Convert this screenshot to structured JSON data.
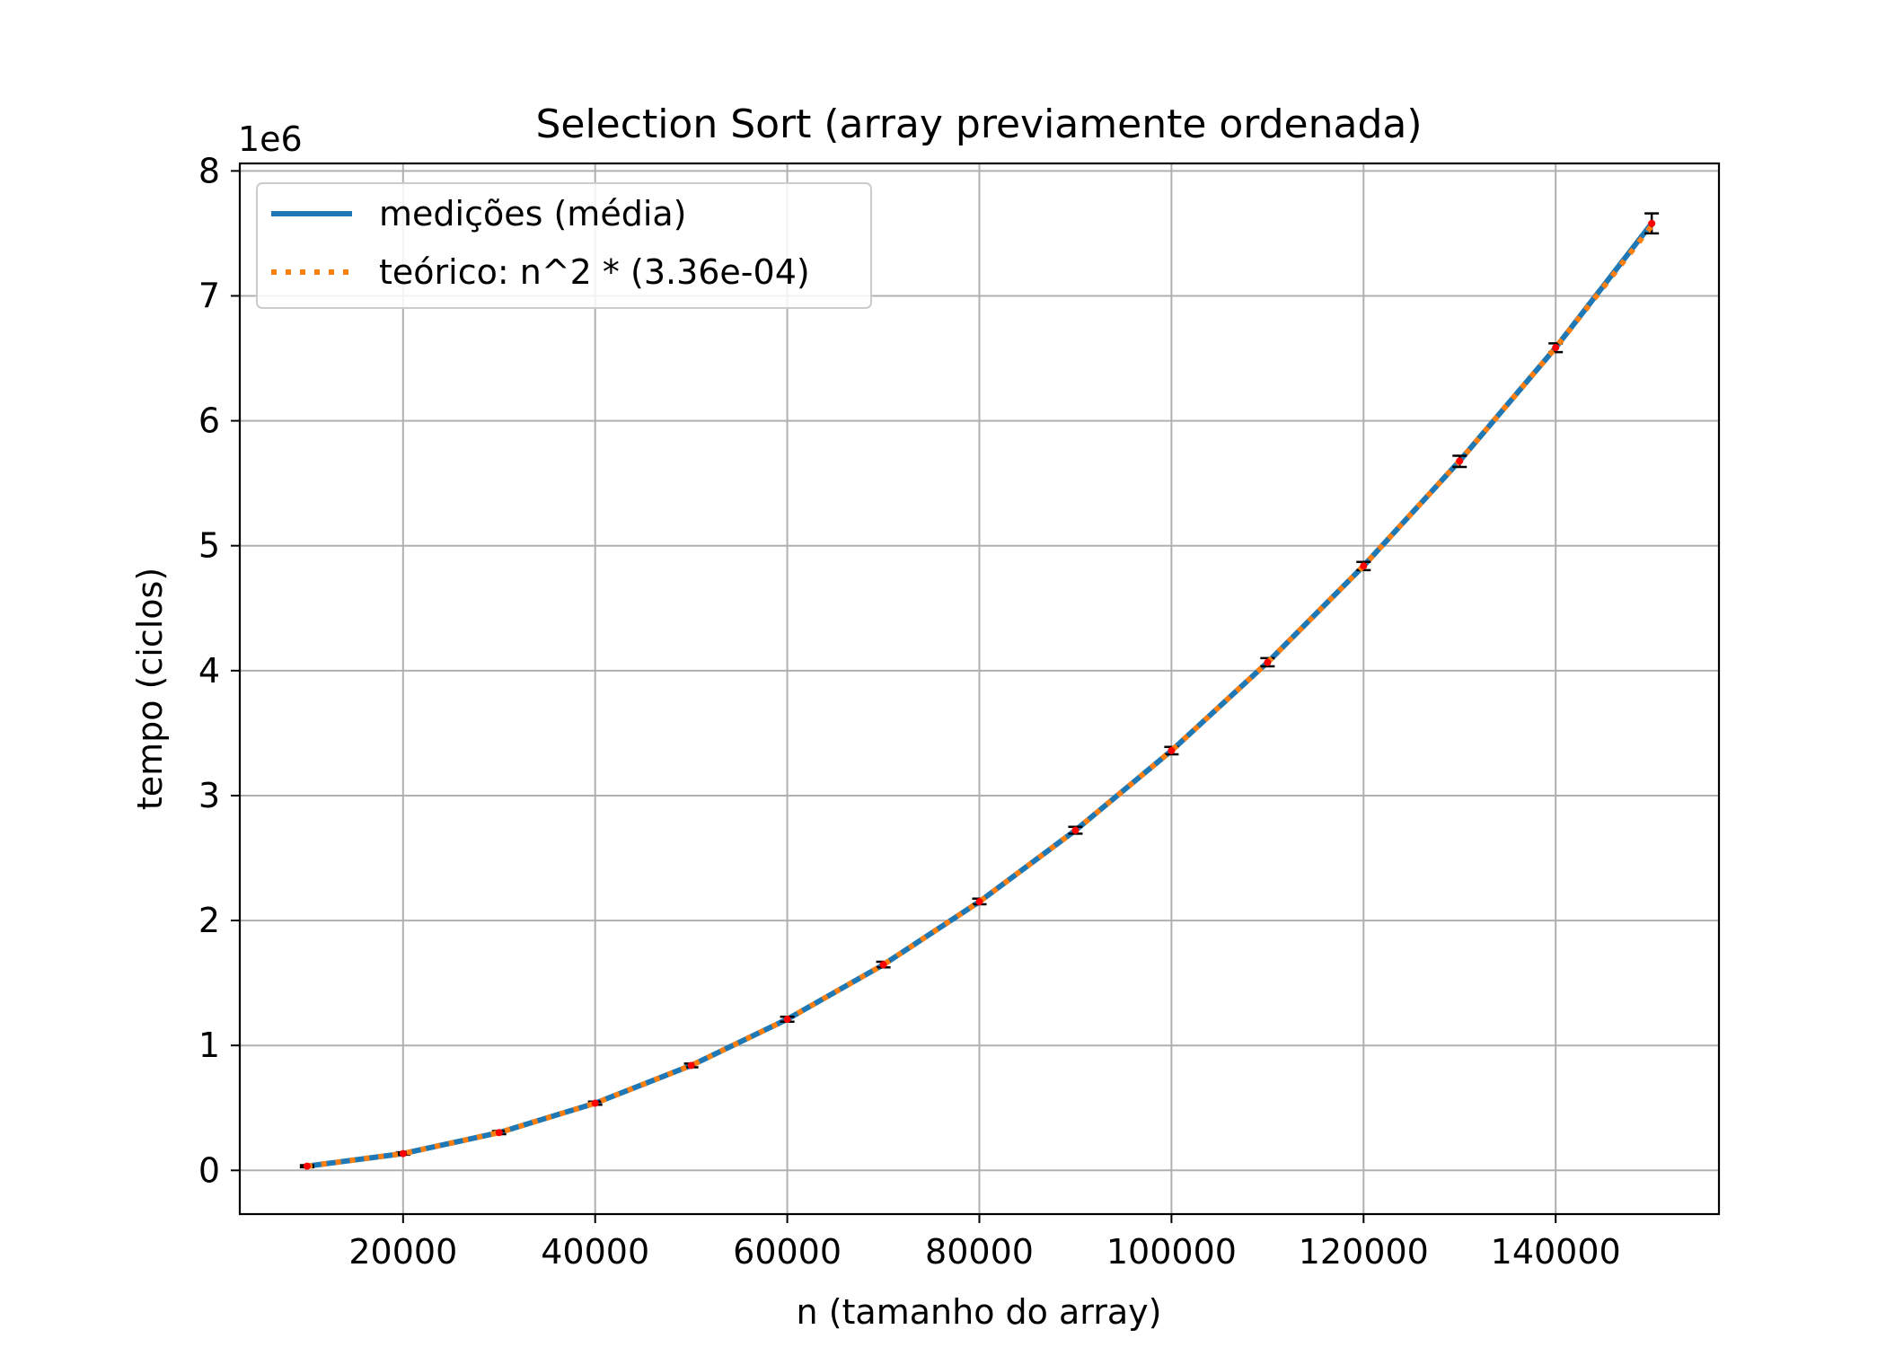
{
  "chart_data": {
    "type": "line",
    "title": "Selection Sort (array previamente ordenada)",
    "xlabel": "n (tamanho do array)",
    "ylabel": "tempo (ciclos)",
    "y_offset_text": "1e6",
    "y_scale": 1000000,
    "xlim": [
      3000,
      157000
    ],
    "ylim": [
      -350000,
      8060000
    ],
    "x_ticks": [
      20000,
      40000,
      60000,
      80000,
      100000,
      120000,
      140000
    ],
    "x_tick_labels": [
      "20000",
      "40000",
      "60000",
      "80000",
      "100000",
      "120000",
      "140000"
    ],
    "y_ticks": [
      0,
      1000000,
      2000000,
      3000000,
      4000000,
      5000000,
      6000000,
      7000000,
      8000000
    ],
    "y_tick_labels": [
      "0",
      "1",
      "2",
      "3",
      "4",
      "5",
      "6",
      "7",
      "8"
    ],
    "grid": true,
    "legend_position": "upper-left",
    "x": [
      10000,
      20000,
      30000,
      40000,
      50000,
      60000,
      70000,
      80000,
      90000,
      100000,
      110000,
      120000,
      130000,
      140000,
      150000
    ],
    "series": [
      {
        "name": "medições (média)",
        "style": "solid",
        "color": "#1f77b4",
        "values": [
          33600,
          134400,
          302400,
          537600,
          840000,
          1209600,
          1646400,
          2150400,
          2721600,
          3360000,
          4065600,
          4838400,
          5678400,
          6585600,
          7580000
        ],
        "error_low": [
          25000,
          125000,
          290000,
          525000,
          825000,
          1190000,
          1625000,
          2130000,
          2695000,
          3330000,
          4035000,
          4805000,
          5630000,
          6550000,
          7500000
        ],
        "error_high": [
          42000,
          145000,
          315000,
          550000,
          855000,
          1230000,
          1670000,
          2175000,
          2750000,
          3390000,
          4100000,
          4870000,
          5720000,
          6620000,
          7660000
        ]
      },
      {
        "name": "teórico: n^2 * (3.36e-04)",
        "style": "dotted",
        "color": "#ff7f0e",
        "values": [
          33600,
          134400,
          302400,
          537600,
          840000,
          1209600,
          1646400,
          2150400,
          2721600,
          3360000,
          4065600,
          4838400,
          5678400,
          6585600,
          7560000
        ]
      }
    ],
    "errorbar_color": "#000000",
    "marker_color": "#ff0000"
  }
}
